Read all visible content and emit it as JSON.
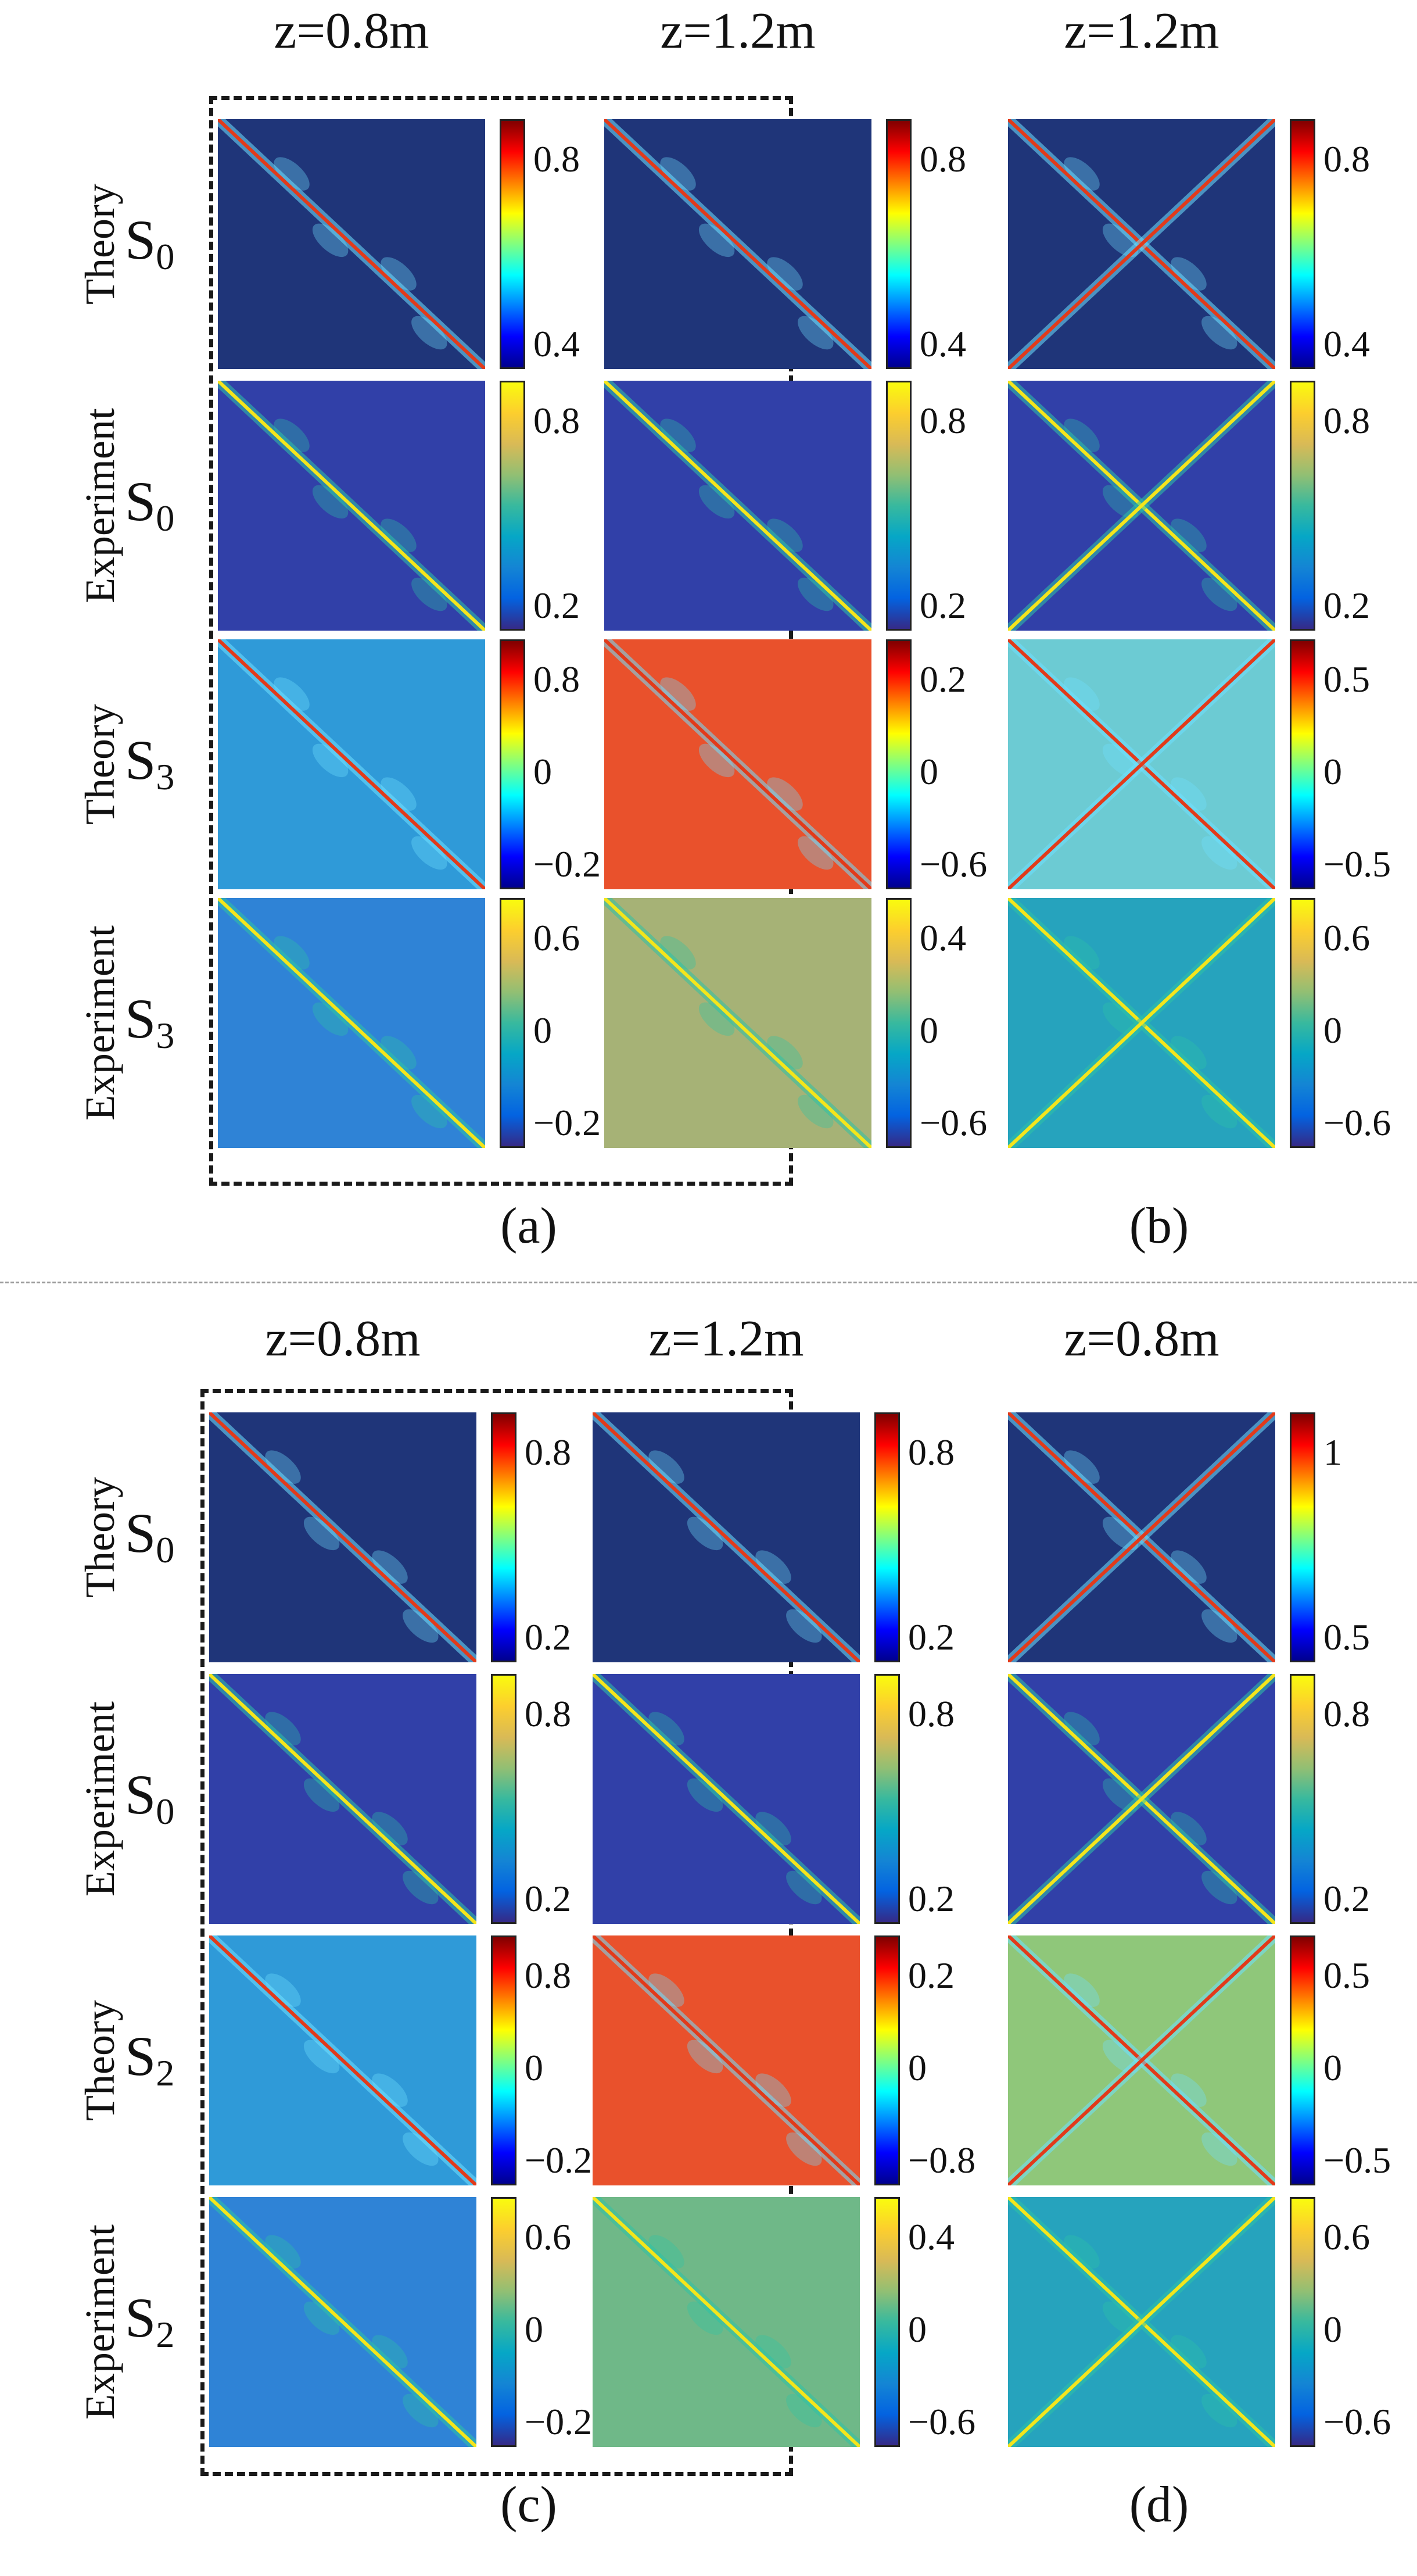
{
  "figure": {
    "sections": [
      {
        "sub_label": "(a)",
        "columns": [
          "z=0.8m",
          "z=1.2m"
        ],
        "rows": [
          {
            "name": "Theory",
            "symbol": "S",
            "subscript": "0",
            "colorbars": [
              [
                "0.8",
                "0.4"
              ],
              [
                "0.8",
                "0.4"
              ]
            ],
            "colormap": "jet",
            "colormaps": [
              "jet",
              "jet"
            ],
            "backgrounds": [
              "#1f3579",
              "#1f3579"
            ]
          },
          {
            "name": "Experiment",
            "symbol": "S",
            "subscript": "0",
            "colorbars": [
              [
                "0.8",
                "0.2"
              ],
              [
                "0.8",
                "0.2"
              ]
            ],
            "colormap": "parula",
            "colormaps": [
              "parula",
              "parula"
            ],
            "backgrounds": [
              "#3140a8",
              "#3140a8"
            ]
          },
          {
            "name": "Theory",
            "symbol": "S",
            "subscript": "3",
            "colorbars": [
              [
                "0.8",
                "0",
                "−0.2"
              ],
              [
                "0.2",
                "0",
                "−0.6"
              ]
            ],
            "colormap": "jet",
            "colormaps": [
              "jet",
              "jet"
            ],
            "backgrounds": [
              "#2f9ad8",
              "#e9512c"
            ]
          },
          {
            "name": "Experiment",
            "symbol": "S",
            "subscript": "3",
            "colorbars": [
              [
                "0.6",
                "0",
                "−0.2"
              ],
              [
                "0.4",
                "0",
                "−0.6"
              ]
            ],
            "colormap": "parula",
            "colormaps": [
              "parula",
              "parula"
            ],
            "backgrounds": [
              "#2f83d6",
              "#a6b276"
            ]
          }
        ]
      },
      {
        "sub_label": "(b)",
        "columns": [
          "z=1.2m"
        ],
        "rows": [
          {
            "name": "Theory",
            "symbol": "S",
            "subscript": "0",
            "colorbars": [
              [
                "0.8",
                "0.4"
              ]
            ],
            "colormap": "jet",
            "colormaps": [
              "jet"
            ],
            "backgrounds": [
              "#1f3579"
            ]
          },
          {
            "name": "Experiment",
            "symbol": "S",
            "subscript": "0",
            "colorbars": [
              [
                "0.8",
                "0.2"
              ]
            ],
            "colormap": "parula",
            "colormaps": [
              "parula"
            ],
            "backgrounds": [
              "#3140a8"
            ]
          },
          {
            "name": "Theory",
            "symbol": "S",
            "subscript": "3",
            "colorbars": [
              [
                "0.5",
                "0",
                "−0.5"
              ]
            ],
            "colormap": "jet",
            "colormaps": [
              "jet"
            ],
            "backgrounds": [
              "#6ccbd3"
            ]
          },
          {
            "name": "Experiment",
            "symbol": "S",
            "subscript": "3",
            "colorbars": [
              [
                "0.6",
                "0",
                "−0.6"
              ]
            ],
            "colormap": "parula",
            "colormaps": [
              "parula"
            ],
            "backgrounds": [
              "#26a3bd"
            ]
          }
        ]
      },
      {
        "sub_label": "(c)",
        "columns": [
          "z=0.8m",
          "z=1.2m"
        ],
        "rows": [
          {
            "name": "Theory",
            "symbol": "S",
            "subscript": "0",
            "colorbars": [
              [
                "0.8",
                "0.2"
              ],
              [
                "0.8",
                "0.2"
              ]
            ],
            "colormap": "jet",
            "colormaps": [
              "jet",
              "jet"
            ],
            "backgrounds": [
              "#1f3579",
              "#1f3579"
            ]
          },
          {
            "name": "Experiment",
            "symbol": "S",
            "subscript": "0",
            "colorbars": [
              [
                "0.8",
                "0.2"
              ],
              [
                "0.8",
                "0.2"
              ]
            ],
            "colormap": "parula",
            "colormaps": [
              "parula",
              "parula"
            ],
            "backgrounds": [
              "#3140a8",
              "#3140a8"
            ]
          },
          {
            "name": "Theory",
            "symbol": "S",
            "subscript": "2",
            "colorbars": [
              [
                "0.8",
                "0",
                "−0.2"
              ],
              [
                "0.2",
                "0",
                "−0.8"
              ]
            ],
            "colormap": "jet",
            "colormaps": [
              "jet",
              "jet"
            ],
            "backgrounds": [
              "#2f9ad8",
              "#e9512c"
            ]
          },
          {
            "name": "Experiment",
            "symbol": "S",
            "subscript": "2",
            "colorbars": [
              [
                "0.6",
                "0",
                "−0.2"
              ],
              [
                "0.4",
                "0",
                "−0.6"
              ]
            ],
            "colormap": "parula",
            "colormaps": [
              "parula",
              "parula"
            ],
            "backgrounds": [
              "#2f83d6",
              "#6fb888"
            ]
          }
        ]
      },
      {
        "sub_label": "(d)",
        "columns": [
          "z=0.8m"
        ],
        "rows": [
          {
            "name": "Theory",
            "symbol": "S",
            "subscript": "0",
            "colorbars": [
              [
                "1",
                "0.5"
              ]
            ],
            "colormap": "jet",
            "colormaps": [
              "jet"
            ],
            "backgrounds": [
              "#1f3579"
            ]
          },
          {
            "name": "Experiment",
            "symbol": "S",
            "subscript": "0",
            "colorbars": [
              [
                "0.8",
                "0.2"
              ]
            ],
            "colormap": "parula",
            "colormaps": [
              "parula"
            ],
            "backgrounds": [
              "#3140a8"
            ]
          },
          {
            "name": "Theory",
            "symbol": "S",
            "subscript": "2",
            "colorbars": [
              [
                "0.5",
                "0",
                "−0.5"
              ]
            ],
            "colormap": "jet",
            "colormaps": [
              "jet"
            ],
            "backgrounds": [
              "#8fc77a"
            ]
          },
          {
            "name": "Experiment",
            "symbol": "S",
            "subscript": "2",
            "colorbars": [
              [
                "0.6",
                "0",
                "−0.6"
              ]
            ],
            "colormap": "parula",
            "colormaps": [
              "parula"
            ],
            "backgrounds": [
              "#26a3bd"
            ]
          }
        ]
      }
    ]
  }
}
